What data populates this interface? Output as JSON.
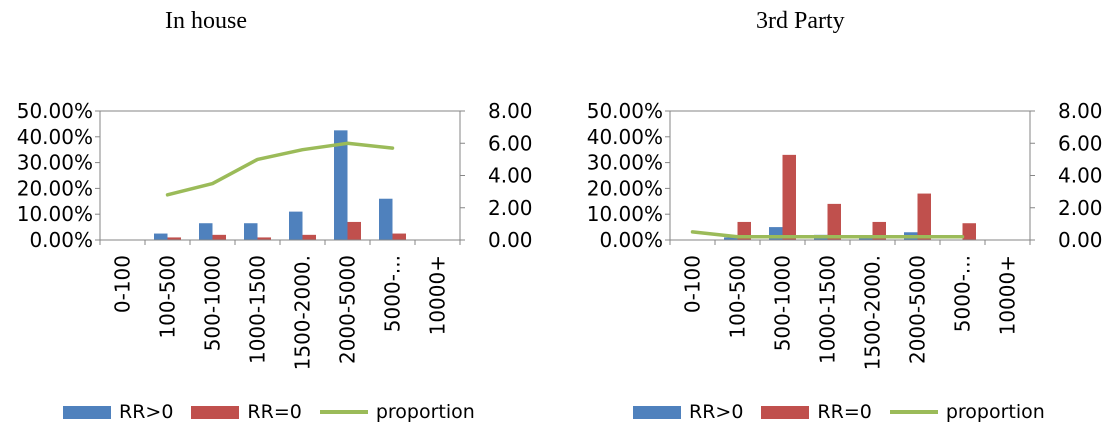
{
  "colors": {
    "rr_pos": "#4F81BD",
    "rr_zero": "#C0504D",
    "proportion": "#9BBB59",
    "axis": "#868686"
  },
  "legend": {
    "rr_pos": "RR>0",
    "rr_zero": "RR=0",
    "proportion": "proportion"
  },
  "chart_data": [
    {
      "type": "bar",
      "title": "In house",
      "categories": [
        "0-100",
        "100-500",
        "500-1000",
        "1000-1500",
        "1500-2000.",
        "2000-5000",
        "5000-...",
        "10000+"
      ],
      "ylim": [
        0,
        50
      ],
      "y2lim": [
        0,
        8
      ],
      "y_ticks": [
        "0.00%",
        "10.00%",
        "20.00%",
        "30.00%",
        "40.00%",
        "50.00%"
      ],
      "y2_ticks": [
        "0.00",
        "2.00",
        "4.00",
        "6.00",
        "8.00"
      ],
      "series": [
        {
          "name": "RR>0",
          "values": [
            0,
            2.5,
            6.5,
            6.5,
            11,
            42.5,
            16,
            0
          ]
        },
        {
          "name": "RR=0",
          "values": [
            0,
            1,
            2,
            1,
            2,
            7,
            2.5,
            0
          ]
        }
      ],
      "line": {
        "name": "proportion",
        "values": [
          null,
          2.8,
          3.5,
          5.0,
          5.6,
          6.0,
          5.7,
          null
        ]
      }
    },
    {
      "type": "bar",
      "title": "3rd Party",
      "categories": [
        "0-100",
        "100-500",
        "500-1000",
        "1000-1500",
        "1500-2000.",
        "2000-5000",
        "5000-...",
        "10000+"
      ],
      "ylim": [
        0,
        50
      ],
      "y2lim": [
        0,
        8
      ],
      "y_ticks": [
        "0.00%",
        "10.00%",
        "20.00%",
        "30.00%",
        "40.00%",
        "50.00%"
      ],
      "y2_ticks": [
        "0.00",
        "2.00",
        "4.00",
        "6.00",
        "8.00"
      ],
      "series": [
        {
          "name": "RR>0",
          "values": [
            0,
            1,
            5,
            2,
            1,
            3,
            0,
            0
          ]
        },
        {
          "name": "RR=0",
          "values": [
            0,
            7,
            33,
            14,
            7,
            18,
            6.5,
            0
          ]
        }
      ],
      "line": {
        "name": "proportion",
        "values": [
          0.5,
          0.2,
          0.2,
          0.2,
          0.2,
          0.2,
          0.2,
          null
        ]
      }
    }
  ]
}
